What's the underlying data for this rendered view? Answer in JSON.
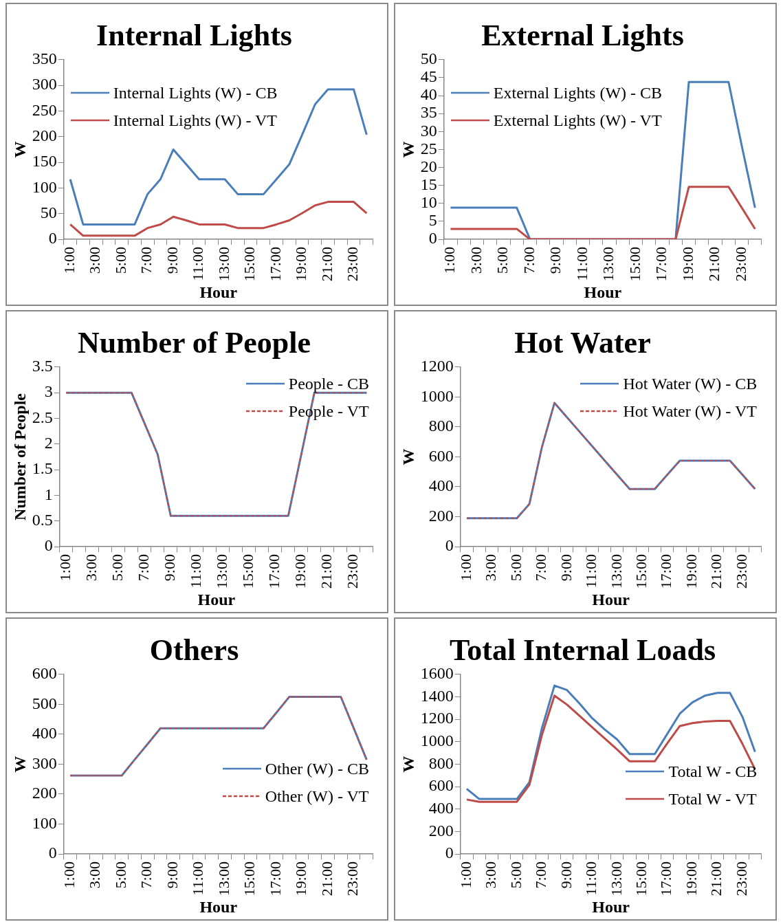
{
  "chart_data": [
    {
      "type": "line",
      "title": "Internal Lights",
      "xlabel": "Hour",
      "ylabel": "W",
      "categories": [
        "1:00",
        null,
        "3:00",
        null,
        "5:00",
        null,
        "7:00",
        null,
        "9:00",
        null,
        "11:00",
        null,
        "13:00",
        null,
        "15:00",
        null,
        "17:00",
        null,
        "19:00",
        null,
        "21:00",
        null,
        "23:00",
        null
      ],
      "ylim": [
        0,
        350
      ],
      "yticks": [
        0,
        50,
        100,
        150,
        200,
        250,
        300,
        350
      ],
      "legend": "top left",
      "series": [
        {
          "name": "Internal Lights (W) - CB",
          "color": "#4a7ebb",
          "values": [
            117,
            29,
            29,
            29,
            29,
            29,
            88,
            117,
            175,
            146,
            117,
            117,
            117,
            88,
            88,
            88,
            117,
            146,
            204,
            263,
            292,
            292,
            292,
            204
          ]
        },
        {
          "name": "Internal Lights (W) - VT",
          "color": "#be4b48",
          "values": [
            29,
            7,
            7,
            7,
            7,
            7,
            22,
            29,
            44,
            37,
            29,
            29,
            29,
            22,
            22,
            22,
            29,
            37,
            51,
            66,
            73,
            73,
            73,
            51
          ]
        }
      ]
    },
    {
      "type": "line",
      "title": "External Lights",
      "xlabel": "Hour",
      "ylabel": "W",
      "categories": [
        "1:00",
        null,
        "3:00",
        null,
        "5:00",
        null,
        "7:00",
        null,
        "9:00",
        null,
        "11:00",
        null,
        "13:00",
        null,
        "15:00",
        null,
        "17:00",
        null,
        "19:00",
        null,
        "21:00",
        null,
        "23:00",
        null
      ],
      "ylim": [
        0,
        50
      ],
      "yticks": [
        0,
        5,
        10,
        15,
        20,
        25,
        30,
        35,
        40,
        45,
        50
      ],
      "legend": "top",
      "series": [
        {
          "name": "External Lights (W) - CB",
          "color": "#4a7ebb",
          "values": [
            8.8,
            8.8,
            8.8,
            8.8,
            8.8,
            8.8,
            0,
            0,
            0,
            0,
            0,
            0,
            0,
            0,
            0,
            0,
            0,
            0,
            43.8,
            43.8,
            43.8,
            43.8,
            26,
            8.8
          ]
        },
        {
          "name": "External Lights (W) - VT",
          "color": "#be4b48",
          "values": [
            2.9,
            2.9,
            2.9,
            2.9,
            2.9,
            2.9,
            0,
            0,
            0,
            0,
            0,
            0,
            0,
            0,
            0,
            0,
            0,
            0,
            14.6,
            14.6,
            14.6,
            14.6,
            8.8,
            2.9
          ]
        }
      ]
    },
    {
      "type": "line",
      "title": "Number of People",
      "xlabel": "Hour",
      "ylabel": "Number of People",
      "categories": [
        "1:00",
        null,
        "3:00",
        null,
        "5:00",
        null,
        "7:00",
        null,
        "9:00",
        null,
        "11:00",
        null,
        "13:00",
        null,
        "15:00",
        null,
        "17:00",
        null,
        "19:00",
        null,
        "21:00",
        null,
        "23:00",
        null
      ],
      "ylim": [
        0,
        3.5
      ],
      "yticks": [
        0,
        0.5,
        1,
        1.5,
        2,
        2.5,
        3,
        3.5
      ],
      "legend": "top right",
      "series": [
        {
          "name": "People - CB",
          "color": "#4a7ebb",
          "values": [
            3,
            3,
            3,
            3,
            3,
            3,
            2.4,
            1.8,
            0.6,
            0.6,
            0.6,
            0.6,
            0.6,
            0.6,
            0.6,
            0.6,
            0.6,
            0.6,
            1.8,
            3,
            3,
            3,
            3,
            3
          ]
        },
        {
          "name": "People - VT",
          "color": "#be4b48",
          "line_style": "dashed",
          "values": [
            3,
            3,
            3,
            3,
            3,
            3,
            2.4,
            1.8,
            0.6,
            0.6,
            0.6,
            0.6,
            0.6,
            0.6,
            0.6,
            0.6,
            0.6,
            0.6,
            1.8,
            3,
            3,
            3,
            3,
            3
          ]
        }
      ]
    },
    {
      "type": "line",
      "title": "Hot Water",
      "xlabel": "Hour",
      "ylabel": "W",
      "categories": [
        "1:00",
        null,
        "3:00",
        null,
        "5:00",
        null,
        "7:00",
        null,
        "9:00",
        null,
        "11:00",
        null,
        "13:00",
        null,
        "15:00",
        null,
        "17:00",
        null,
        "19:00",
        null,
        "21:00",
        null,
        "23:00",
        null
      ],
      "ylim": [
        0,
        1200
      ],
      "yticks": [
        0,
        200,
        400,
        600,
        800,
        1000,
        1200
      ],
      "legend": "top right",
      "series": [
        {
          "name": "Hot Water (W) - CB",
          "color": "#4a7ebb",
          "values": [
            190,
            190,
            190,
            190,
            190,
            285,
            665,
            960,
            864,
            768,
            672,
            576,
            480,
            385,
            385,
            385,
            480,
            575,
            575,
            575,
            575,
            575,
            480,
            385
          ]
        },
        {
          "name": "Hot Water (W) - VT",
          "color": "#be4b48",
          "line_style": "dashed",
          "values": [
            190,
            190,
            190,
            190,
            190,
            285,
            665,
            960,
            864,
            768,
            672,
            576,
            480,
            385,
            385,
            385,
            480,
            575,
            575,
            575,
            575,
            575,
            480,
            385
          ]
        }
      ]
    },
    {
      "type": "line",
      "title": "Others",
      "xlabel": "Hour",
      "ylabel": "W",
      "categories": [
        "1:00",
        null,
        "3:00",
        null,
        "5:00",
        null,
        "7:00",
        null,
        "9:00",
        null,
        "11:00",
        null,
        "13:00",
        null,
        "15:00",
        null,
        "17:00",
        null,
        "19:00",
        null,
        "21:00",
        null,
        "23:00",
        null
      ],
      "ylim": [
        0,
        600
      ],
      "yticks": [
        0,
        100,
        200,
        300,
        400,
        500,
        600
      ],
      "legend": "right",
      "series": [
        {
          "name": "Other (W) - CB",
          "color": "#4a7ebb",
          "values": [
            262,
            262,
            262,
            262,
            262,
            315,
            367,
            420,
            420,
            420,
            420,
            420,
            420,
            420,
            420,
            420,
            472,
            525,
            525,
            525,
            525,
            525,
            420,
            315
          ]
        },
        {
          "name": "Other (W) - VT",
          "color": "#be4b48",
          "line_style": "dashed",
          "values": [
            262,
            262,
            262,
            262,
            262,
            315,
            367,
            420,
            420,
            420,
            420,
            420,
            420,
            420,
            420,
            420,
            472,
            525,
            525,
            525,
            525,
            525,
            420,
            315
          ]
        }
      ]
    },
    {
      "type": "line",
      "title": "Total Internal Loads",
      "xlabel": "Hour",
      "ylabel": "W",
      "categories": [
        "1:00",
        null,
        "3:00",
        null,
        "5:00",
        null,
        "7:00",
        null,
        "9:00",
        null,
        "11:00",
        null,
        "13:00",
        null,
        "15:00",
        null,
        "17:00",
        null,
        "19:00",
        null,
        "21:00",
        null,
        "23:00",
        null
      ],
      "ylim": [
        0,
        1600
      ],
      "yticks": [
        0,
        200,
        400,
        600,
        800,
        1000,
        1200,
        1400,
        1600
      ],
      "legend": "bottom right",
      "series": [
        {
          "name": "Total W - CB",
          "color": "#4a7ebb",
          "values": [
            580,
            490,
            490,
            490,
            490,
            640,
            1120,
            1500,
            1460,
            1340,
            1210,
            1110,
            1020,
            890,
            890,
            890,
            1070,
            1250,
            1350,
            1410,
            1435,
            1435,
            1220,
            910
          ]
        },
        {
          "name": "Total W - VT",
          "color": "#be4b48",
          "values": [
            485,
            465,
            465,
            465,
            465,
            615,
            1060,
            1410,
            1330,
            1230,
            1130,
            1030,
            930,
            825,
            825,
            825,
            985,
            1140,
            1165,
            1180,
            1185,
            1185,
            980,
            755
          ]
        }
      ]
    }
  ]
}
